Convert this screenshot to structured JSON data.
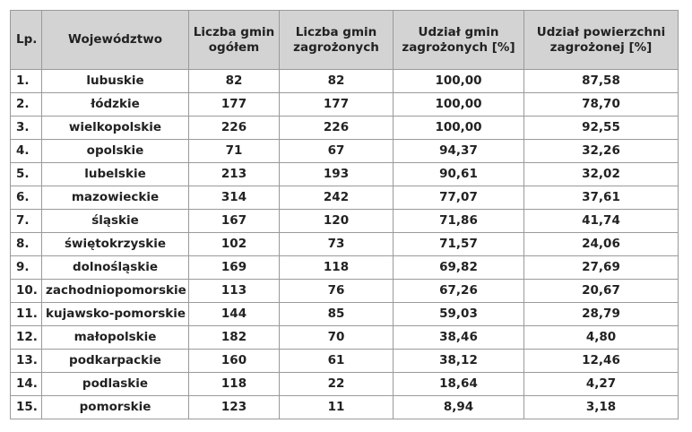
{
  "headers": {
    "lp": "Lp.",
    "wojewodztwo": "Województwo",
    "liczba_gmin": "Liczba gmin ogółem",
    "liczba_zagrozonych": "Liczba gmin zagrożonych",
    "udzial_gmin": "Udział gmin zagrożonych [%]",
    "udzial_powierzchni": "Udział powierzchni zagrożonej [%]"
  },
  "rows": [
    {
      "lp": "1.",
      "woj": "lubuskie",
      "gminy": "82",
      "zagrozone": "82",
      "udzial": "100,00",
      "powierzchnia": "87,58"
    },
    {
      "lp": "2.",
      "woj": "łódzkie",
      "gminy": "177",
      "zagrozone": "177",
      "udzial": "100,00",
      "powierzchnia": "78,70"
    },
    {
      "lp": "3.",
      "woj": "wielkopolskie",
      "gminy": "226",
      "zagrozone": "226",
      "udzial": "100,00",
      "powierzchnia": "92,55"
    },
    {
      "lp": "4.",
      "woj": "opolskie",
      "gminy": "71",
      "zagrozone": "67",
      "udzial": "94,37",
      "powierzchnia": "32,26"
    },
    {
      "lp": "5.",
      "woj": "lubelskie",
      "gminy": "213",
      "zagrozone": "193",
      "udzial": "90,61",
      "powierzchnia": "32,02"
    },
    {
      "lp": "6.",
      "woj": "mazowieckie",
      "gminy": "314",
      "zagrozone": "242",
      "udzial": "77,07",
      "powierzchnia": "37,61"
    },
    {
      "lp": "7.",
      "woj": "śląskie",
      "gminy": "167",
      "zagrozone": "120",
      "udzial": "71,86",
      "powierzchnia": "41,74"
    },
    {
      "lp": "8.",
      "woj": "świętokrzyskie",
      "gminy": "102",
      "zagrozone": "73",
      "udzial": "71,57",
      "powierzchnia": "24,06"
    },
    {
      "lp": "9.",
      "woj": "dolnośląskie",
      "gminy": "169",
      "zagrozone": "118",
      "udzial": "69,82",
      "powierzchnia": "27,69"
    },
    {
      "lp": "10.",
      "woj": "zachodniopomorskie",
      "gminy": "113",
      "zagrozone": "76",
      "udzial": "67,26",
      "powierzchnia": "20,67"
    },
    {
      "lp": "11.",
      "woj": "kujawsko-pomorskie",
      "gminy": "144",
      "zagrozone": "85",
      "udzial": "59,03",
      "powierzchnia": "28,79"
    },
    {
      "lp": "12.",
      "woj": "małopolskie",
      "gminy": "182",
      "zagrozone": "70",
      "udzial": "38,46",
      "powierzchnia": "4,80"
    },
    {
      "lp": "13.",
      "woj": "podkarpackie",
      "gminy": "160",
      "zagrozone": "61",
      "udzial": "38,12",
      "powierzchnia": "12,46"
    },
    {
      "lp": "14.",
      "woj": "podlaskie",
      "gminy": "118",
      "zagrozone": "22",
      "udzial": "18,64",
      "powierzchnia": "4,27"
    },
    {
      "lp": "15.",
      "woj": "pomorskie",
      "gminy": "123",
      "zagrozone": "11",
      "udzial": "8,94",
      "powierzchnia": "3,18"
    }
  ]
}
